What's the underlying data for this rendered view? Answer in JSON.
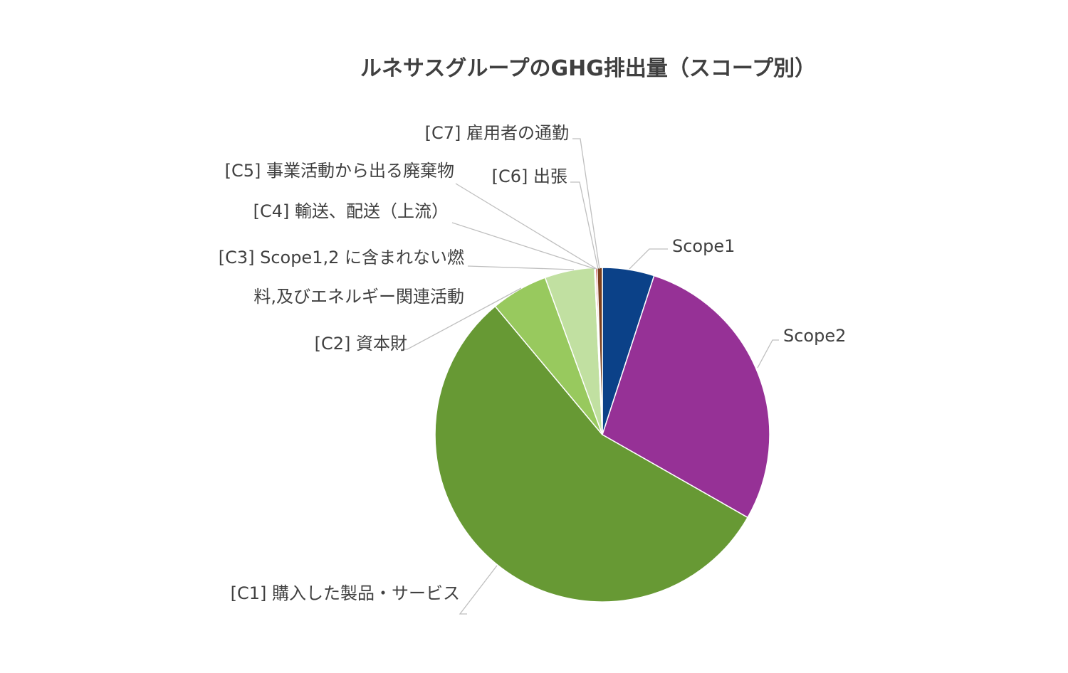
{
  "chart_data": {
    "type": "pie",
    "title": "ルネサスグループのGHG排出量（スコープ別）",
    "start_angle_deg": 0,
    "direction": "clockwise",
    "slices": [
      {
        "label": "Scope1",
        "value": 5.0,
        "color": "#0b4188"
      },
      {
        "label": "Scope2",
        "value": 28.2,
        "color": "#963196"
      },
      {
        "label": "[C1] 購入した製品・サービス",
        "value": 55.6,
        "color": "#679934"
      },
      {
        "label": "[C2] 資本財",
        "value": 5.5,
        "color": "#98c95e"
      },
      {
        "label": [
          "[C3] Scope1,2 に含まれない燃",
          "料,及びエネルギー関連活動"
        ],
        "value": 4.8,
        "color": "#c1e0a1"
      },
      {
        "label": "[C4] 輸送、配送（上流）",
        "value": 0.05,
        "color": "#bf9000"
      },
      {
        "label": "[C5] 事業活動から出る廃棄物",
        "value": 0.05,
        "color": "#7f7f7f"
      },
      {
        "label": "[C6] 出張",
        "value": 0.15,
        "color": "#c00000"
      },
      {
        "label": "[C7] 雇用者の通勤",
        "value": 0.5,
        "color": "#7b3f1c"
      }
    ]
  }
}
